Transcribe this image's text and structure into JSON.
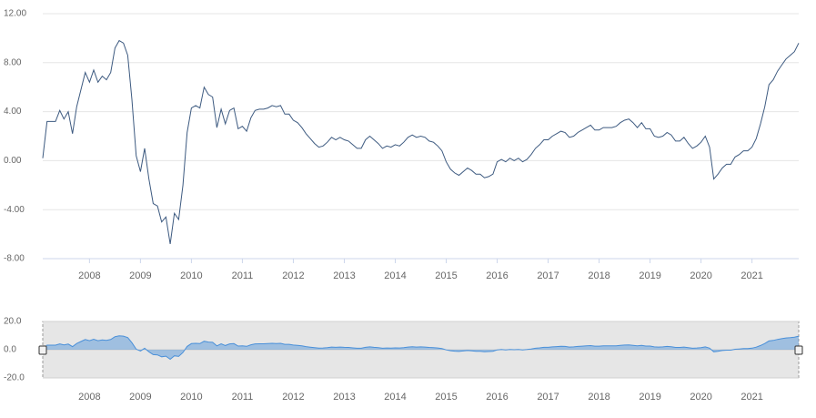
{
  "chart_data": {
    "type": "line",
    "color": "#3d5a80",
    "grid": true,
    "categories": [
      null,
      null,
      null,
      null,
      null,
      null,
      null,
      null,
      null,
      null,
      null,
      "2008",
      null,
      null,
      null,
      null,
      null,
      null,
      null,
      null,
      null,
      null,
      null,
      "2009",
      null,
      null,
      null,
      null,
      null,
      null,
      null,
      null,
      null,
      null,
      null,
      "2010",
      null,
      null,
      null,
      null,
      null,
      null,
      null,
      null,
      null,
      null,
      null,
      "2011",
      null,
      null,
      null,
      null,
      null,
      null,
      null,
      null,
      null,
      null,
      null,
      "2012",
      null,
      null,
      null,
      null,
      null,
      null,
      null,
      null,
      null,
      null,
      null,
      "2013",
      null,
      null,
      null,
      null,
      null,
      null,
      null,
      null,
      null,
      null,
      null,
      "2014",
      null,
      null,
      null,
      null,
      null,
      null,
      null,
      null,
      null,
      null,
      null,
      "2015",
      null,
      null,
      null,
      null,
      null,
      null,
      null,
      null,
      null,
      null,
      null,
      "2016",
      null,
      null,
      null,
      null,
      null,
      null,
      null,
      null,
      null,
      null,
      null,
      "2017",
      null,
      null,
      null,
      null,
      null,
      null,
      null,
      null,
      null,
      null,
      null,
      "2018",
      null,
      null,
      null,
      null,
      null,
      null,
      null,
      null,
      null,
      null,
      null,
      "2019",
      null,
      null,
      null,
      null,
      null,
      null,
      null,
      null,
      null,
      null,
      null,
      "2020",
      null,
      null,
      null,
      null,
      null,
      null,
      null,
      null,
      null,
      null,
      null,
      "2021",
      null,
      null,
      null,
      null,
      null,
      null,
      null,
      null,
      null,
      null,
      null
    ],
    "values": [
      0.2,
      3.2,
      3.2,
      3.2,
      4.1,
      3.4,
      4.0,
      2.2,
      4.4,
      5.8,
      7.2,
      6.4,
      7.4,
      6.4,
      6.9,
      6.6,
      7.2,
      9.2,
      9.8,
      9.6,
      8.6,
      5.0,
      0.4,
      -0.9,
      1.0,
      -1.5,
      -3.5,
      -3.7,
      -5.0,
      -4.6,
      -6.8,
      -4.3,
      -4.8,
      -2.0,
      2.3,
      4.3,
      4.5,
      4.3,
      6.0,
      5.4,
      5.2,
      2.7,
      4.2,
      3.0,
      4.1,
      4.3,
      2.6,
      2.8,
      2.4,
      3.5,
      4.1,
      4.2,
      4.2,
      4.3,
      4.5,
      4.4,
      4.5,
      3.8,
      3.8,
      3.3,
      3.1,
      2.7,
      2.2,
      1.8,
      1.4,
      1.1,
      1.2,
      1.5,
      1.9,
      1.7,
      1.9,
      1.7,
      1.6,
      1.3,
      1.0,
      1.0,
      1.7,
      2.0,
      1.7,
      1.4,
      1.0,
      1.2,
      1.1,
      1.3,
      1.2,
      1.5,
      1.9,
      2.1,
      1.9,
      2.0,
      1.9,
      1.6,
      1.5,
      1.2,
      0.8,
      -0.1,
      -0.7,
      -1.0,
      -1.2,
      -0.9,
      -0.6,
      -0.8,
      -1.1,
      -1.1,
      -1.4,
      -1.3,
      -1.1,
      -0.1,
      0.1,
      -0.1,
      0.2,
      0.0,
      0.2,
      -0.1,
      0.1,
      0.5,
      1.0,
      1.3,
      1.7,
      1.7,
      2.0,
      2.2,
      2.4,
      2.3,
      1.9,
      2.0,
      2.3,
      2.5,
      2.7,
      2.9,
      2.5,
      2.5,
      2.7,
      2.7,
      2.7,
      2.8,
      3.1,
      3.3,
      3.4,
      3.1,
      2.7,
      3.1,
      2.6,
      2.6,
      2.0,
      1.9,
      2.0,
      2.3,
      2.1,
      1.6,
      1.6,
      1.9,
      1.4,
      1.0,
      1.2,
      1.5,
      2.0,
      1.1,
      -1.5,
      -1.1,
      -0.6,
      -0.3,
      -0.3,
      0.3,
      0.5,
      0.8,
      0.8,
      1.1,
      1.8,
      3.0,
      4.4,
      6.2,
      6.6,
      7.3,
      7.8,
      8.3,
      8.6,
      8.9,
      9.6
    ],
    "ylim": [
      -8,
      12
    ],
    "yticks": [
      {
        "value": -8,
        "label": "-8.00"
      },
      {
        "value": -4,
        "label": "-4.00"
      },
      {
        "value": 0,
        "label": "0.00"
      },
      {
        "value": 4,
        "label": "4.00"
      },
      {
        "value": 8,
        "label": "8.00"
      },
      {
        "value": 12,
        "label": "12.00"
      }
    ],
    "navigator": {
      "color": "#4a90d9",
      "ylim": [
        -20,
        20
      ],
      "yticks": [
        {
          "value": -20,
          "label": "-20.0"
        },
        {
          "value": 0,
          "label": "0.0"
        },
        {
          "value": 20,
          "label": "20.0"
        }
      ]
    }
  }
}
